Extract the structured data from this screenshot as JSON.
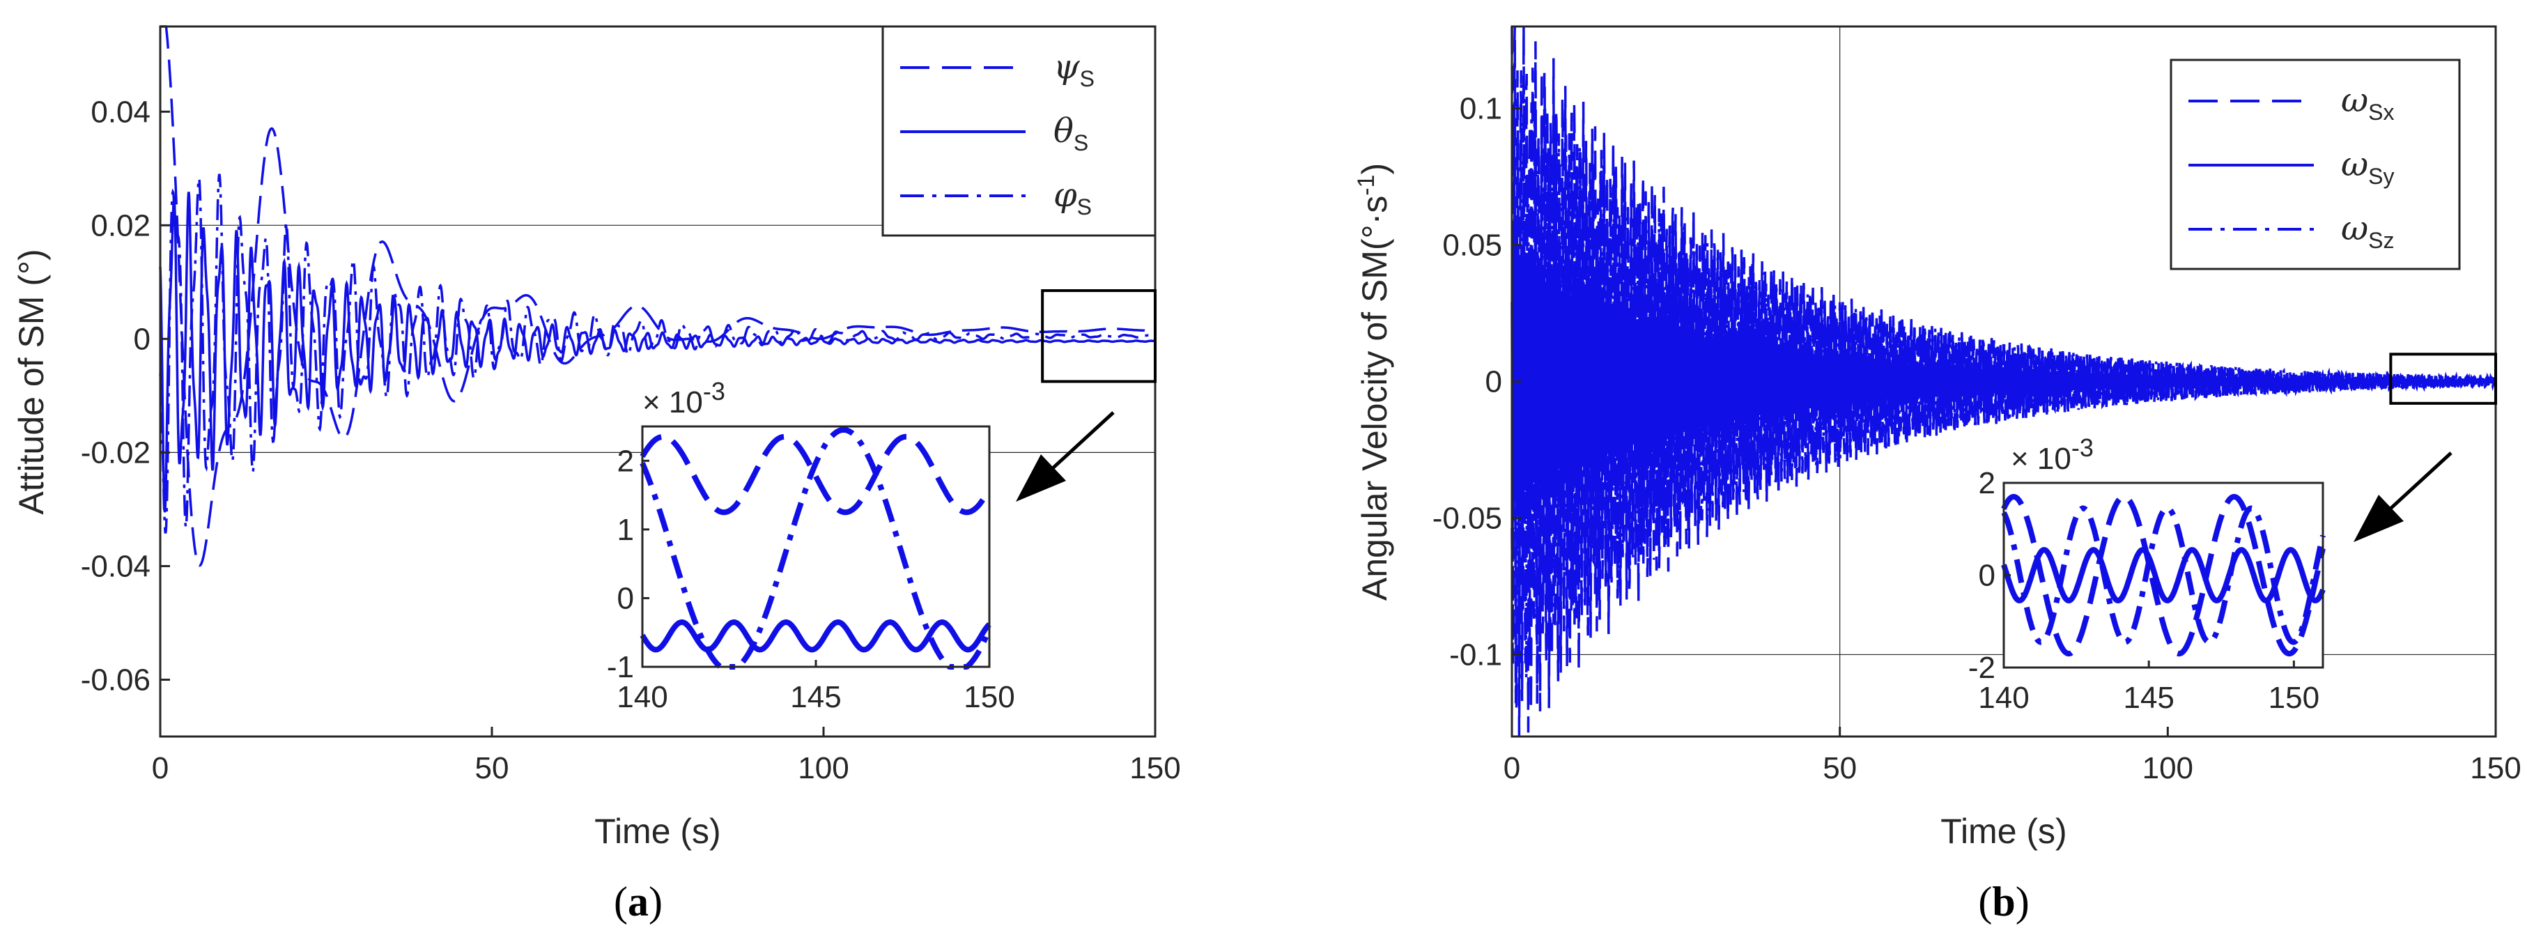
{
  "chart_data": [
    {
      "id": "a",
      "type": "line",
      "caption": "a",
      "xlabel": "Time (s)",
      "ylabel": "Attitude of SM (°)",
      "xlim": [
        0,
        150
      ],
      "ylim": [
        -0.07,
        0.055
      ],
      "xticks": [
        0,
        50,
        100,
        150
      ],
      "yticks": [
        -0.06,
        -0.04,
        -0.02,
        0,
        0.02,
        0.04
      ],
      "xtick_labels": [
        "0",
        "50",
        "100",
        "150"
      ],
      "ytick_labels": [
        "-0.06",
        "-0.04",
        "-0.02",
        "0",
        "0.02",
        "0.04"
      ],
      "legend_position": "top-right",
      "series": [
        {
          "name": "ψ",
          "sub": "S",
          "style": "dashed",
          "amp": 0.05,
          "decay": 0.038,
          "freq": 0.055,
          "phase": 0.4,
          "offset": 0.0015,
          "mode2": 0.35
        },
        {
          "name": "θ",
          "sub": "S",
          "style": "solid",
          "amp": 0.025,
          "decay": 0.04,
          "freq": 0.42,
          "phase": 1.2,
          "offset": -0.0004,
          "mode2": 0.25
        },
        {
          "name": "φ",
          "sub": "S",
          "style": "dashdot",
          "amp": 0.03,
          "decay": 0.035,
          "freq": 0.3,
          "phase": 2.0,
          "offset": 0.0005,
          "mode2": 0.3
        }
      ],
      "zoom_box": {
        "x": [
          133,
          150
        ],
        "y": [
          -0.0075,
          0.0085
        ]
      },
      "inset": {
        "xlim": [
          140,
          150
        ],
        "ylim": [
          -1,
          2.5
        ],
        "xticks": [
          140,
          145,
          150
        ],
        "yticks": [
          -1,
          0,
          1,
          2
        ],
        "xtick_labels": [
          "140",
          "145",
          "150"
        ],
        "ytick_labels": [
          "-1",
          "0",
          "1",
          "2"
        ],
        "scale_label": "× 10",
        "scale_exp": "-3",
        "series": [
          {
            "style": "dashed",
            "mean": 1.8,
            "amp": 0.55,
            "period": 3.5,
            "phase": 0.5
          },
          {
            "style": "solid",
            "mean": -0.55,
            "amp": 0.2,
            "period": 1.5,
            "phase": 1.0
          },
          {
            "style": "dashdot",
            "mean": 0.7,
            "amp": 1.75,
            "period": 6.6,
            "phase": 1.0
          }
        ]
      }
    },
    {
      "id": "b",
      "type": "line",
      "caption": "b",
      "xlabel": "Time (s)",
      "ylabel": "Angular Velocity of SM(°·s",
      "ylabel_exp": "-1",
      "ylabel_end": ")",
      "xlim": [
        0,
        150
      ],
      "ylim": [
        -0.13,
        0.13
      ],
      "xticks": [
        0,
        50,
        100,
        150
      ],
      "yticks": [
        -0.1,
        -0.05,
        0,
        0.05,
        0.1
      ],
      "xtick_labels": [
        "0",
        "50",
        "100",
        "150"
      ],
      "ytick_labels": [
        "-0.1",
        "-0.05",
        "0",
        "0.05",
        "0.1"
      ],
      "legend_position": "top-right",
      "series": [
        {
          "name": "ω",
          "sub": "Sx",
          "style": "dashed",
          "amp": 0.12,
          "decay": 0.03,
          "freq": 2.2,
          "phase": 0.3,
          "offset": 0.0,
          "mode2": 0.2
        },
        {
          "name": "ω",
          "sub": "Sy",
          "style": "solid",
          "amp": 0.05,
          "decay": 0.032,
          "freq": 2.6,
          "phase": 1.1,
          "offset": 0.0,
          "mode2": 0.2
        },
        {
          "name": "ω",
          "sub": "Sz",
          "style": "dashdot",
          "amp": 0.1,
          "decay": 0.028,
          "freq": 1.9,
          "phase": 2.3,
          "offset": 0.0,
          "mode2": 0.2
        }
      ],
      "zoom_box": {
        "x": [
          134,
          150
        ],
        "y": [
          -0.008,
          0.01
        ]
      },
      "inset": {
        "xlim": [
          140,
          151
        ],
        "ylim": [
          -2,
          2
        ],
        "xticks": [
          140,
          145,
          150
        ],
        "yticks": [
          -2,
          0,
          2
        ],
        "xtick_labels": [
          "140",
          "145",
          "150"
        ],
        "ytick_labels": [
          "-2",
          "0",
          "2"
        ],
        "scale_label": "× 10",
        "scale_exp": "-3",
        "series": [
          {
            "style": "dashed",
            "mean": 0.0,
            "amp": 1.7,
            "period": 3.8,
            "phase": 2.0
          },
          {
            "style": "solid",
            "mean": 0.0,
            "amp": 0.55,
            "period": 1.7,
            "phase": 0.5
          },
          {
            "style": "dashdot",
            "mean": 0.0,
            "amp": 1.45,
            "period": 2.9,
            "phase": 0.2
          }
        ]
      }
    }
  ],
  "colors": {
    "line": "#1010e6",
    "axis": "#262626",
    "grid": "#333333"
  }
}
